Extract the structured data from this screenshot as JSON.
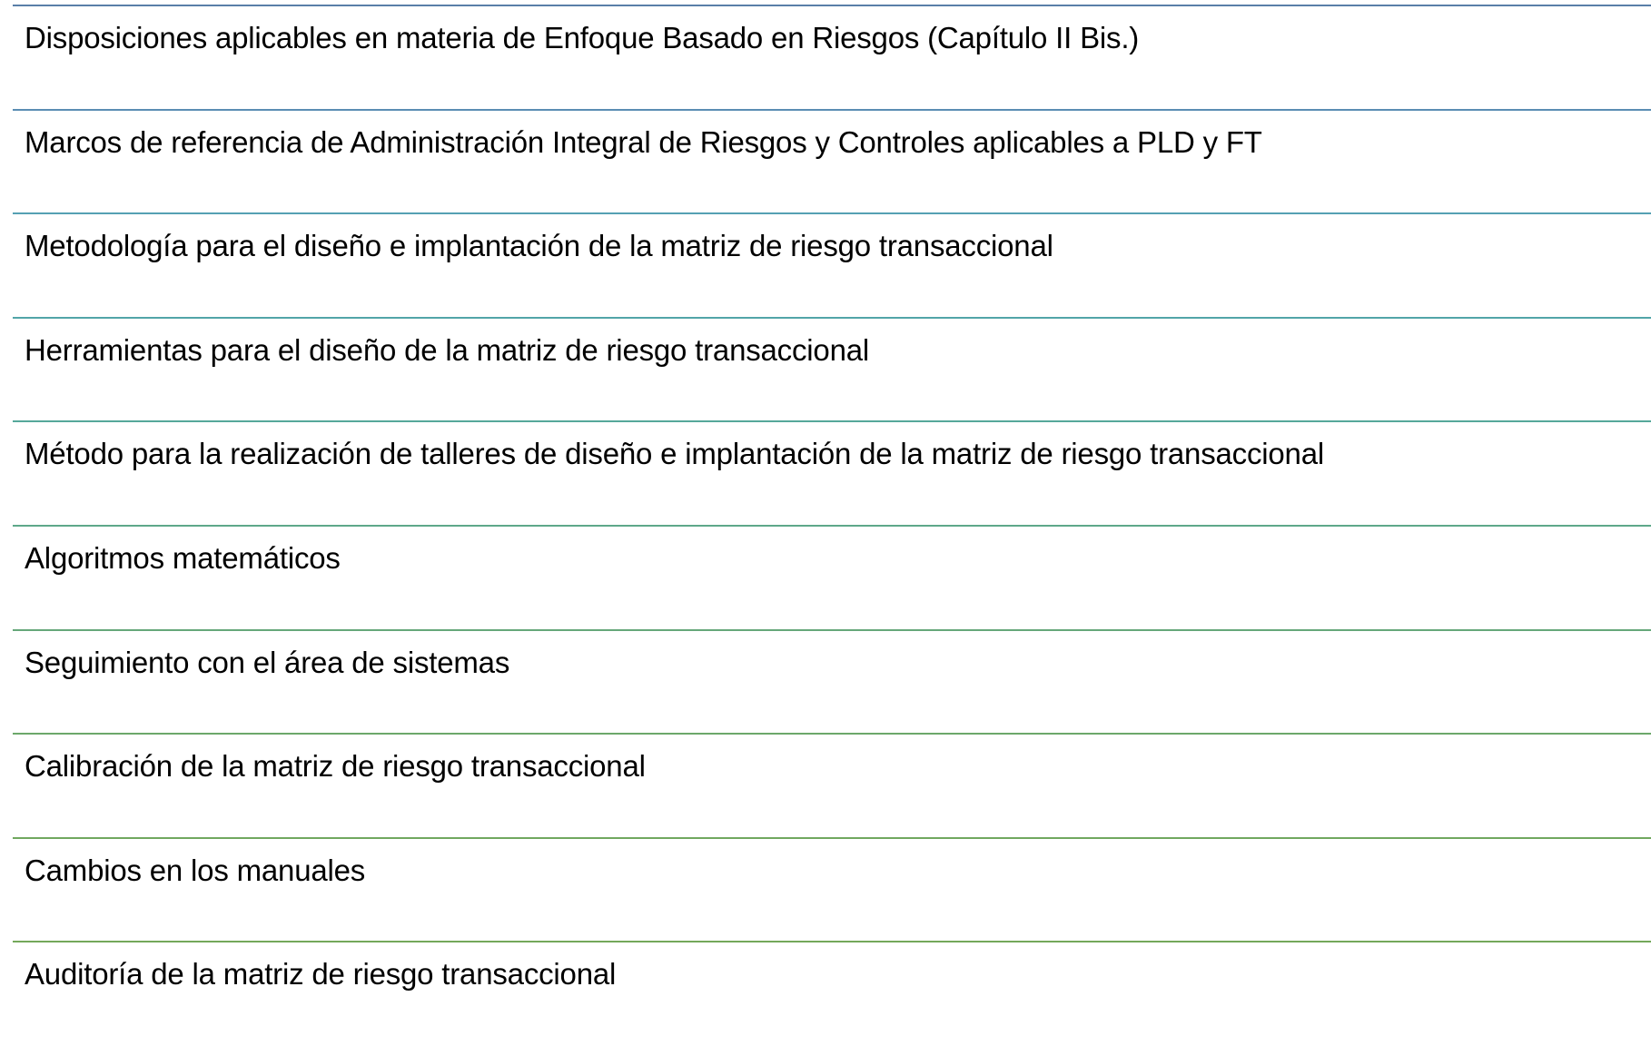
{
  "items": [
    {
      "label": "Disposiciones aplicables en materia de Enfoque Basado en Riesgos (Capítulo II Bis.)",
      "rule_color": "#5a7fa8"
    },
    {
      "label": "Marcos de referencia de Administración Integral de Riesgos y Controles aplicables a  PLD y FT",
      "rule_color": "#5a8db3"
    },
    {
      "label": "Metodología para el diseño e implantación de la matriz de riesgo transaccional",
      "rule_color": "#55a0b3"
    },
    {
      "label": "Herramientas para el diseño de la matriz de riesgo transaccional",
      "rule_color": "#52a5a8"
    },
    {
      "label": "Método para la realización de talleres de diseño e implantación de la matriz de riesgo transaccional",
      "rule_color": "#55a89a"
    },
    {
      "label": "Algoritmos matemáticos",
      "rule_color": "#5ea88a"
    },
    {
      "label": "Seguimiento con el área de sistemas",
      "rule_color": "#66a87a"
    },
    {
      "label": "Calibración de la matriz de riesgo transaccional",
      "rule_color": "#6ca86a"
    },
    {
      "label": "Cambios en los manuales",
      "rule_color": "#70a85f"
    },
    {
      "label": "Auditoría de la matriz de riesgo transaccional",
      "rule_color": "#74a85a"
    }
  ]
}
